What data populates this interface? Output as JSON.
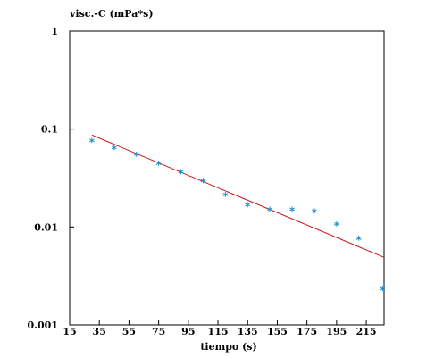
{
  "chart_data": {
    "type": "scatter",
    "ylabel": "visc.-C (mPa*s)",
    "xlabel": "tiempo (s)",
    "x_ticks": [
      15,
      35,
      55,
      75,
      95,
      115,
      135,
      155,
      175,
      195,
      215
    ],
    "y_ticks": [
      1,
      0.1,
      0.01,
      0.001
    ],
    "y_tick_labels": [
      "1",
      "0.1",
      "0.01",
      "0.001"
    ],
    "xlim": [
      15,
      227
    ],
    "ylim": [
      0.001,
      1
    ],
    "y_scale": "log",
    "grid": false,
    "marker": "*",
    "marker_color": "#1b8fd0",
    "line_color": "#cc1010",
    "series": [
      {
        "type": "scatter",
        "x": [
          30,
          45,
          60,
          75,
          90,
          105,
          120,
          135,
          150,
          165,
          180,
          195,
          210,
          226
        ],
        "y": [
          0.075,
          0.063,
          0.054,
          0.044,
          0.036,
          0.029,
          0.021,
          0.0165,
          0.0148,
          0.0148,
          0.0142,
          0.0105,
          0.0075,
          0.0023
        ]
      },
      {
        "type": "line",
        "x": [
          30,
          227
        ],
        "y": [
          0.087,
          0.0049
        ]
      }
    ]
  }
}
